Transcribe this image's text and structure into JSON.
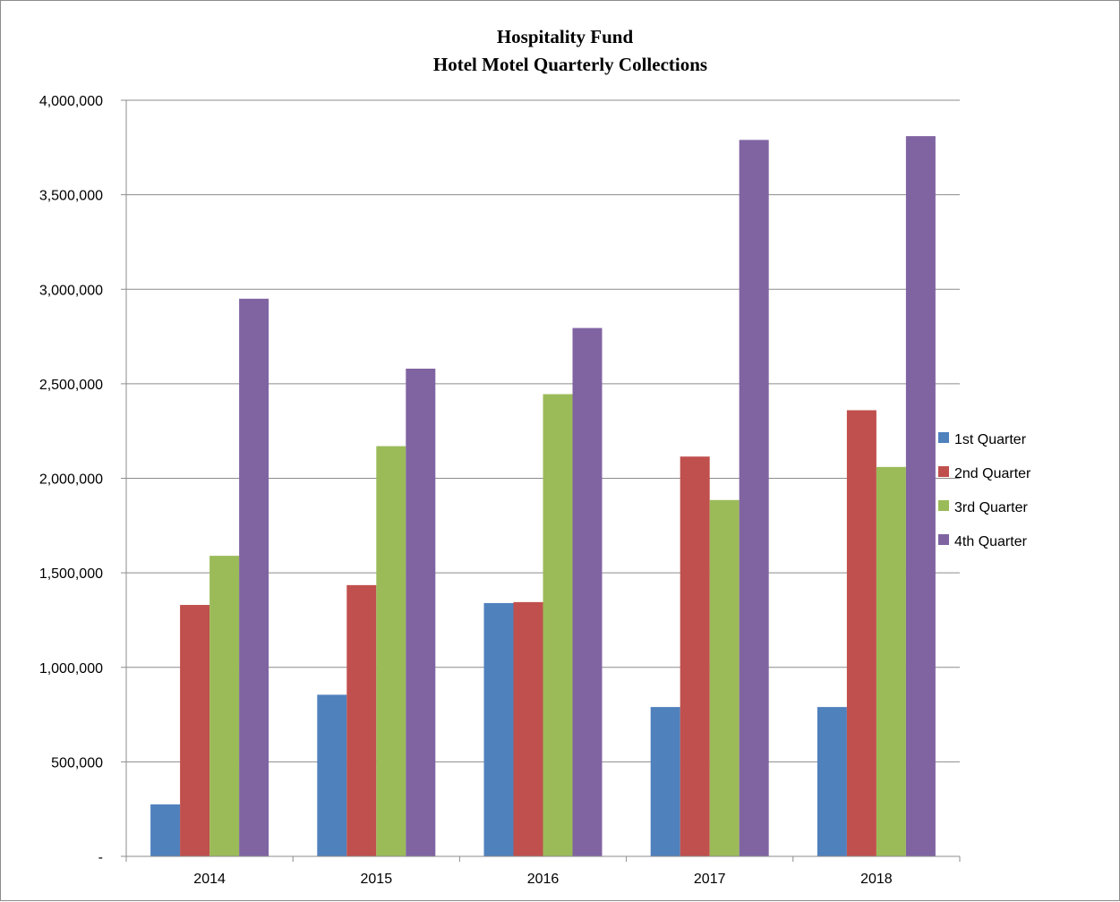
{
  "chart_data": {
    "type": "bar",
    "title": "Hospitality  Fund",
    "subtitle": "Hotel Motel Quarterly  Collections",
    "xlabel": "",
    "ylabel": "",
    "categories": [
      "2014",
      "2015",
      "2016",
      "2017",
      "2018"
    ],
    "series": [
      {
        "name": "1st Quarter",
        "color": "#4F81BD",
        "values": [
          275000,
          855000,
          1340000,
          790000,
          790000
        ]
      },
      {
        "name": "2nd Quarter",
        "color": "#C0504D",
        "values": [
          1330000,
          1435000,
          1345000,
          2115000,
          2360000
        ]
      },
      {
        "name": "3rd Quarter",
        "color": "#9BBB59",
        "values": [
          1590000,
          2170000,
          2445000,
          1885000,
          2060000
        ]
      },
      {
        "name": "4th Quarter",
        "color": "#8064A2",
        "values": [
          2950000,
          2580000,
          2795000,
          3790000,
          3810000
        ]
      }
    ],
    "ylim": [
      0,
      4000000
    ],
    "yticks": [
      0,
      500000,
      1000000,
      1500000,
      2000000,
      2500000,
      3000000,
      3500000,
      4000000
    ],
    "ytick_labels": [
      "-",
      "500,000",
      "1,000,000",
      "1,500,000",
      "2,000,000",
      "2,500,000",
      "3,000,000",
      "3,500,000",
      "4,000,000"
    ],
    "grid": true,
    "legend_position": "right"
  }
}
